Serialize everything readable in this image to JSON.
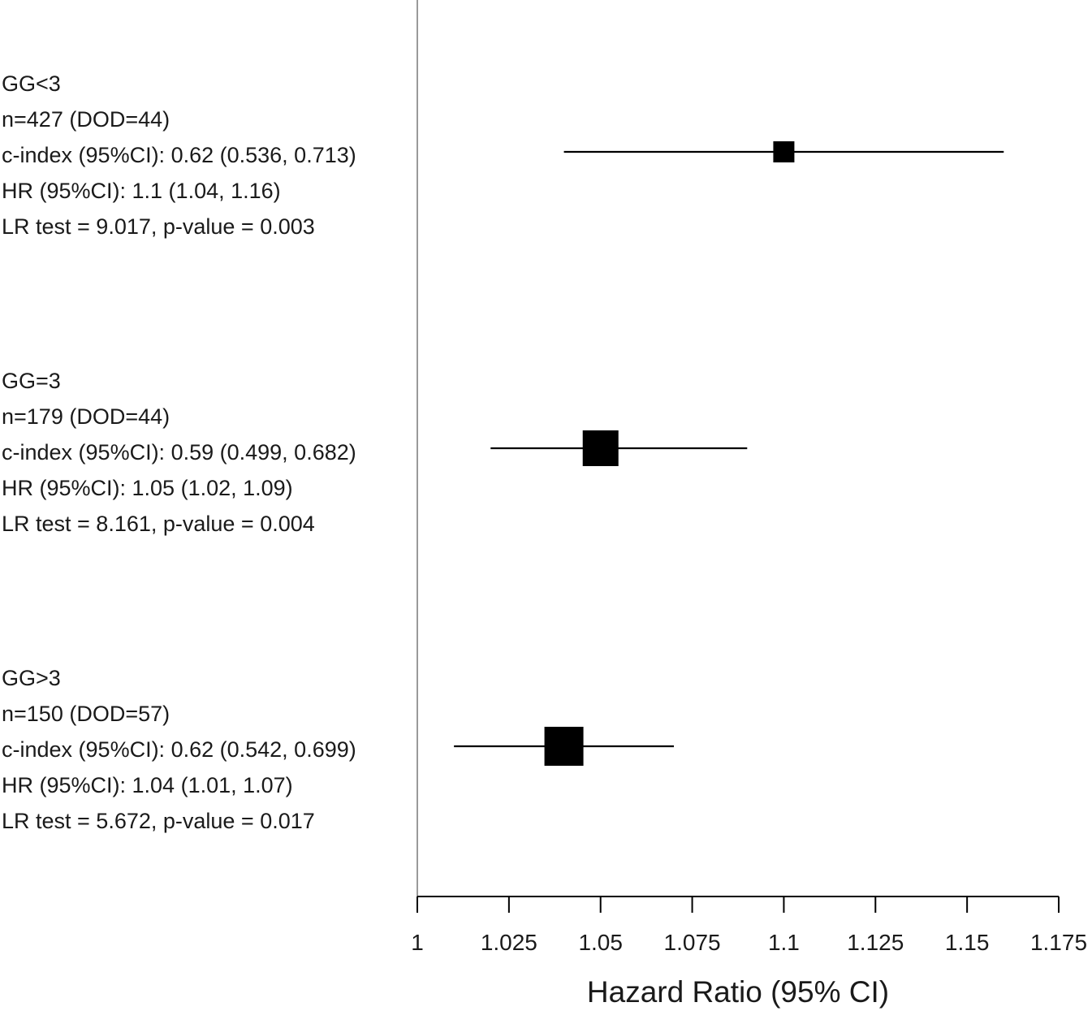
{
  "chart_data": {
    "type": "forest",
    "title": "",
    "xlabel": "Hazard Ratio (95% CI)",
    "ylabel": "",
    "xlim": [
      1,
      1.175
    ],
    "xticks": [
      1,
      1.025,
      1.05,
      1.075,
      1.1,
      1.125,
      1.15,
      1.175
    ],
    "xtick_labels": [
      "1",
      "1.025",
      "1.05",
      "1.075",
      "1.1",
      "1.125",
      "1.15",
      "1.175"
    ],
    "reference_line": 1,
    "grid": false,
    "legend": null,
    "series": [
      {
        "name": "GG<3",
        "n": 427,
        "dod": 44,
        "c_index": 0.62,
        "c_index_ci": [
          0.536,
          0.713
        ],
        "hr": 1.1,
        "hr_ci": [
          1.04,
          1.16
        ],
        "lr_test": 9.017,
        "p_value": 0.003,
        "marker_size": 26,
        "lines": [
          "GG<3",
          "n=427 (DOD=44)",
          "c-index (95%CI): 0.62 (0.536, 0.713)",
          "HR (95%CI): 1.1 (1.04, 1.16)",
          "LR test = 9.017, p-value = 0.003"
        ]
      },
      {
        "name": "GG=3",
        "n": 179,
        "dod": 44,
        "c_index": 0.59,
        "c_index_ci": [
          0.499,
          0.682
        ],
        "hr": 1.05,
        "hr_ci": [
          1.02,
          1.09
        ],
        "lr_test": 8.161,
        "p_value": 0.004,
        "marker_size": 44,
        "lines": [
          "GG=3",
          "n=179 (DOD=44)",
          "c-index (95%CI): 0.59 (0.499, 0.682)",
          "HR (95%CI): 1.05 (1.02, 1.09)",
          "LR test = 8.161, p-value = 0.004"
        ]
      },
      {
        "name": "GG>3",
        "n": 150,
        "dod": 57,
        "c_index": 0.62,
        "c_index_ci": [
          0.542,
          0.699
        ],
        "hr": 1.04,
        "hr_ci": [
          1.01,
          1.07
        ],
        "lr_test": 5.672,
        "p_value": 0.017,
        "marker_size": 48,
        "lines": [
          "GG>3",
          "n=150 (DOD=57)",
          "c-index (95%CI): 0.62 (0.542, 0.699)",
          "HR (95%CI): 1.04 (1.01, 1.07)",
          "LR test = 5.672, p-value = 0.017"
        ]
      }
    ]
  },
  "colors": {
    "marker": "#000000",
    "ci_line": "#000000",
    "axis": "#000000",
    "reference_line": "#9a9a9a",
    "text": "#1a1a1a"
  }
}
